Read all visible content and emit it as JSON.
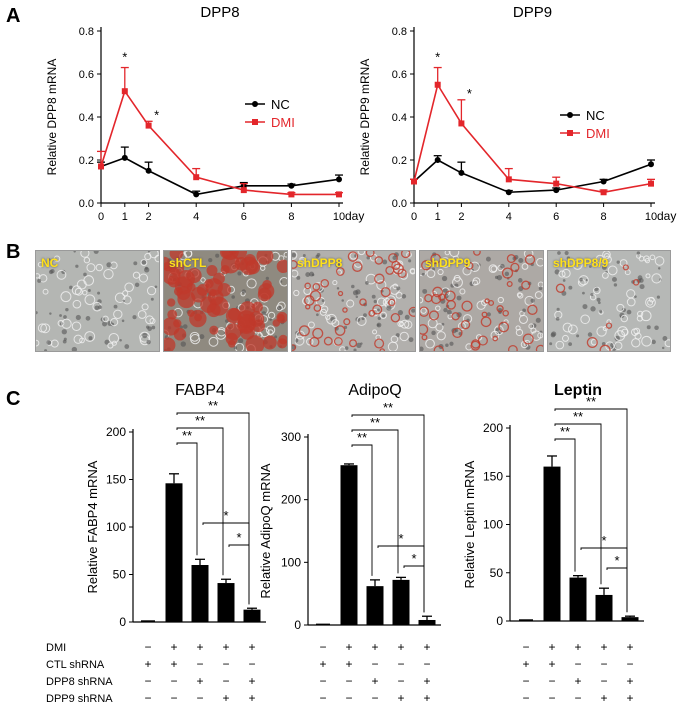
{
  "panel_letters": {
    "a": "A",
    "b": "B",
    "c": "C"
  },
  "panel_b": {
    "images": [
      {
        "label": "NC",
        "bg": "#b4b6b3",
        "stain": "none"
      },
      {
        "label": "shCTL",
        "bg": "#8f8a80",
        "stain": "heavy"
      },
      {
        "label": "shDPP8",
        "bg": "#b2b0ad",
        "stain": "medium"
      },
      {
        "label": "shDPP9",
        "bg": "#ada9a5",
        "stain": "medium"
      },
      {
        "label": "shDPP8/9",
        "bg": "#b6b8b6",
        "stain": "light"
      }
    ],
    "colors": {
      "stain_red": "#c0392b",
      "label_yellow": "#ffe11a"
    }
  },
  "condition_table": {
    "rows": [
      {
        "label": "DMI",
        "marks": [
          "−",
          "+",
          "+",
          "+",
          "+"
        ]
      },
      {
        "label": "CTL shRNA",
        "marks": [
          "+",
          "+",
          "−",
          "−",
          "−"
        ]
      },
      {
        "label": "DPP8 shRNA",
        "marks": [
          "−",
          "−",
          "+",
          "−",
          "+"
        ]
      },
      {
        "label": "DPP9 shRNA",
        "marks": [
          "−",
          "−",
          "−",
          "+",
          "+"
        ]
      }
    ]
  },
  "chart_data": [
    {
      "type": "line",
      "title": "DPP8",
      "xlabel": "day",
      "ylabel": "Relative DPP8 mRNA",
      "x": [
        0,
        1,
        2,
        4,
        6,
        8,
        10
      ],
      "xticks": [
        "0",
        "1",
        "2",
        "4",
        "6",
        "8",
        "10"
      ],
      "ylim": [
        0,
        0.8
      ],
      "yticks": [
        "0.0",
        "0.2",
        "0.4",
        "0.6",
        "0.8"
      ],
      "series": [
        {
          "name": "NC",
          "color": "#000000",
          "values": [
            0.17,
            0.21,
            0.15,
            0.04,
            0.08,
            0.08,
            0.11
          ],
          "errors": [
            0.02,
            0.05,
            0.04,
            0.015,
            0.015,
            0.008,
            0.02
          ]
        },
        {
          "name": "DMI",
          "color": "#e3262b",
          "values": [
            0.17,
            0.52,
            0.36,
            0.12,
            0.06,
            0.04,
            0.04
          ],
          "errors": [
            0.07,
            0.11,
            0.02,
            0.04,
            0.03,
            0.008,
            0.008
          ]
        }
      ],
      "annotations": [
        {
          "x": 1,
          "text": "*"
        },
        {
          "x": 2,
          "text": "*"
        }
      ],
      "legend": "center-right"
    },
    {
      "type": "line",
      "title": "DPP9",
      "xlabel": "day",
      "ylabel": "Relative DPP9 mRNA",
      "x": [
        0,
        1,
        2,
        4,
        6,
        8,
        10
      ],
      "xticks": [
        "0",
        "1",
        "2",
        "4",
        "6",
        "8",
        "10"
      ],
      "ylim": [
        0,
        0.8
      ],
      "yticks": [
        "0.0",
        "0.2",
        "0.4",
        "0.6",
        "0.8"
      ],
      "series": [
        {
          "name": "NC",
          "color": "#000000",
          "values": [
            0.1,
            0.2,
            0.14,
            0.05,
            0.06,
            0.1,
            0.18
          ],
          "errors": [
            0.01,
            0.02,
            0.05,
            0.008,
            0.01,
            0.01,
            0.02
          ]
        },
        {
          "name": "DMI",
          "color": "#e3262b",
          "values": [
            0.1,
            0.55,
            0.37,
            0.11,
            0.09,
            0.05,
            0.09
          ],
          "errors": [
            0.01,
            0.08,
            0.11,
            0.05,
            0.03,
            0.01,
            0.02
          ]
        }
      ],
      "annotations": [
        {
          "x": 1,
          "text": "*"
        },
        {
          "x": 2,
          "text": "*"
        }
      ],
      "legend": "center-right"
    },
    {
      "type": "bar",
      "title": "FABP4",
      "ylabel": "Relative FABP4 mRNA",
      "ylim": [
        0,
        200
      ],
      "yticks": [
        "0",
        "50",
        "100",
        "150",
        "200"
      ],
      "values": [
        1,
        146,
        60,
        41,
        13
      ],
      "errors": [
        0,
        10,
        6,
        4,
        1.5
      ],
      "significance": [
        {
          "from": 1,
          "to": 4,
          "text": "**"
        },
        {
          "from": 1,
          "to": 3,
          "text": "**"
        },
        {
          "from": 1,
          "to": 2,
          "text": "**"
        },
        {
          "from": 2,
          "to": 4,
          "text": "*"
        },
        {
          "from": 3,
          "to": 4,
          "text": "*"
        }
      ]
    },
    {
      "type": "bar",
      "title": "AdipoQ",
      "ylabel": "Relative AdipoQ mRNA",
      "ylim": [
        0,
        300
      ],
      "yticks": [
        "0",
        "100",
        "200",
        "300"
      ],
      "values": [
        1,
        255,
        62,
        72,
        8
      ],
      "errors": [
        0,
        2,
        10,
        4,
        6
      ],
      "significance": [
        {
          "from": 1,
          "to": 4,
          "text": "**"
        },
        {
          "from": 1,
          "to": 3,
          "text": "**"
        },
        {
          "from": 1,
          "to": 2,
          "text": "**"
        },
        {
          "from": 2,
          "to": 4,
          "text": "*"
        },
        {
          "from": 3,
          "to": 4,
          "text": "*"
        }
      ]
    },
    {
      "type": "bar",
      "title": "Leptin",
      "ylabel": "Relative Leptin mRNA",
      "ylim": [
        0,
        200
      ],
      "yticks": [
        "0",
        "50",
        "100",
        "150",
        "200"
      ],
      "values": [
        1,
        160,
        45,
        27,
        4
      ],
      "errors": [
        0,
        11,
        2,
        7,
        1
      ],
      "significance": [
        {
          "from": 1,
          "to": 4,
          "text": "**"
        },
        {
          "from": 1,
          "to": 3,
          "text": "**"
        },
        {
          "from": 1,
          "to": 2,
          "text": "**"
        },
        {
          "from": 2,
          "to": 4,
          "text": "*"
        },
        {
          "from": 3,
          "to": 4,
          "text": "*"
        }
      ]
    }
  ]
}
